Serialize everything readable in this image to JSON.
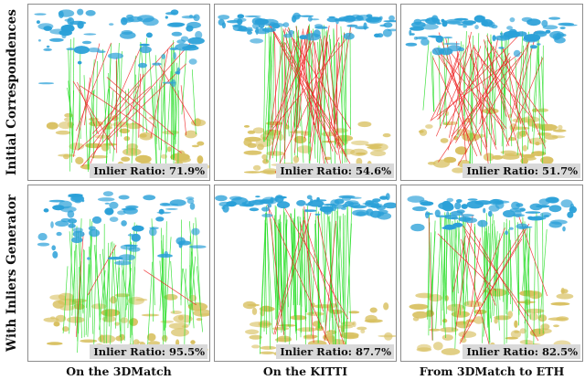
{
  "rows": [
    {
      "label": "Initial Correspondences",
      "panels": [
        {
          "ratio_text": "Inlier Ratio: 71.9%",
          "inlier_ratio": 0.719,
          "scene": "3dmatch"
        },
        {
          "ratio_text": "Inlier Ratio: 54.6%",
          "inlier_ratio": 0.546,
          "scene": "kitti"
        },
        {
          "ratio_text": "Inlier Ratio: 51.7%",
          "inlier_ratio": 0.517,
          "scene": "eth"
        }
      ]
    },
    {
      "label": "With Inliers Generator",
      "panels": [
        {
          "ratio_text": "Inlier Ratio: 95.5%",
          "inlier_ratio": 0.955,
          "scene": "3dmatch"
        },
        {
          "ratio_text": "Inlier Ratio: 87.7%",
          "inlier_ratio": 0.877,
          "scene": "kitti"
        },
        {
          "ratio_text": "Inlier Ratio: 82.5%",
          "inlier_ratio": 0.825,
          "scene": "eth"
        }
      ]
    }
  ],
  "columns": [
    {
      "label": "On the 3DMatch"
    },
    {
      "label": "On the KITTI"
    },
    {
      "label": "From 3DMatch to ETH"
    }
  ],
  "colors": {
    "inlier_line": "#22dd22",
    "outlier_line": "#ee2222",
    "source_cloud": "#2aa0d8",
    "target_cloud": "#d8c060",
    "panel_border": "#8c8c8c",
    "badge_bg": "#d9d9d9"
  }
}
